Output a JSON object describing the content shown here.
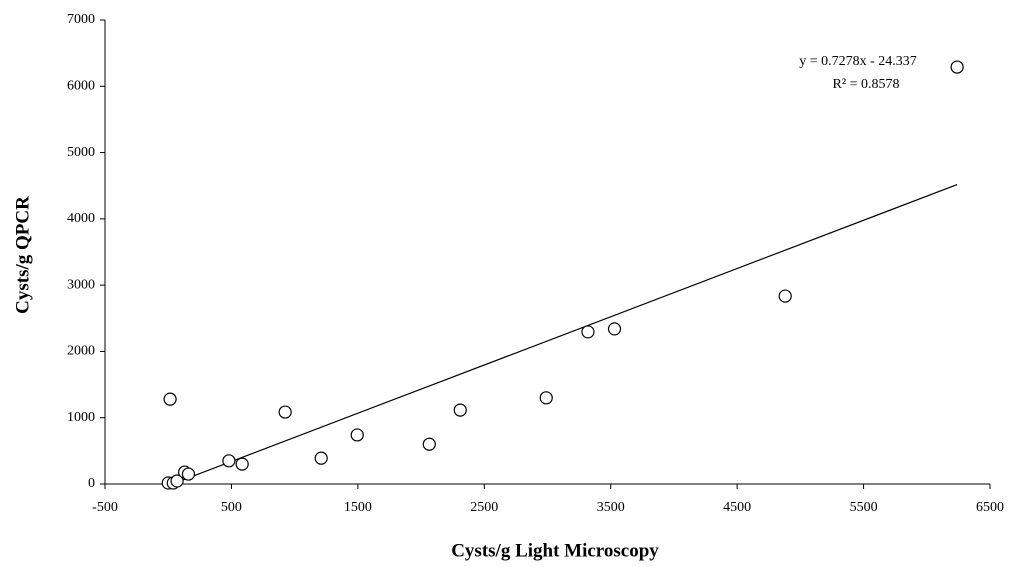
{
  "chart_data": {
    "type": "scatter",
    "x_label": "Cysts/g Light Microscopy",
    "y_label": "Cysts/g QPCR",
    "annotations": [
      "y = 0.7278x  - 24.337",
      "R² = 0.8578"
    ],
    "series": [
      {
        "color": "#000000",
        "x": [
          0,
          40,
          70,
          130,
          160,
          15,
          480,
          585,
          925,
          1210,
          1495,
          2065,
          2310,
          2990,
          3320,
          3530,
          4880,
          6240
        ],
        "values": [
          15,
          15,
          45,
          180,
          150,
          1280,
          350,
          300,
          1085,
          390,
          740,
          600,
          1115,
          1300,
          2295,
          2340,
          2835,
          6290
        ]
      }
    ],
    "trendline": {
      "slope": 0.7278,
      "intercept": -24.337,
      "x": [
        0,
        6240
      ]
    },
    "xlim": [
      -500,
      6500
    ],
    "xticks": [
      -500,
      500,
      1500,
      2500,
      3500,
      4500,
      5500,
      6500
    ],
    "ylim": [
      0,
      7000
    ],
    "yticks": [
      0,
      1000,
      2000,
      3000,
      4000,
      5000,
      6000,
      7000
    ],
    "grid": false
  }
}
